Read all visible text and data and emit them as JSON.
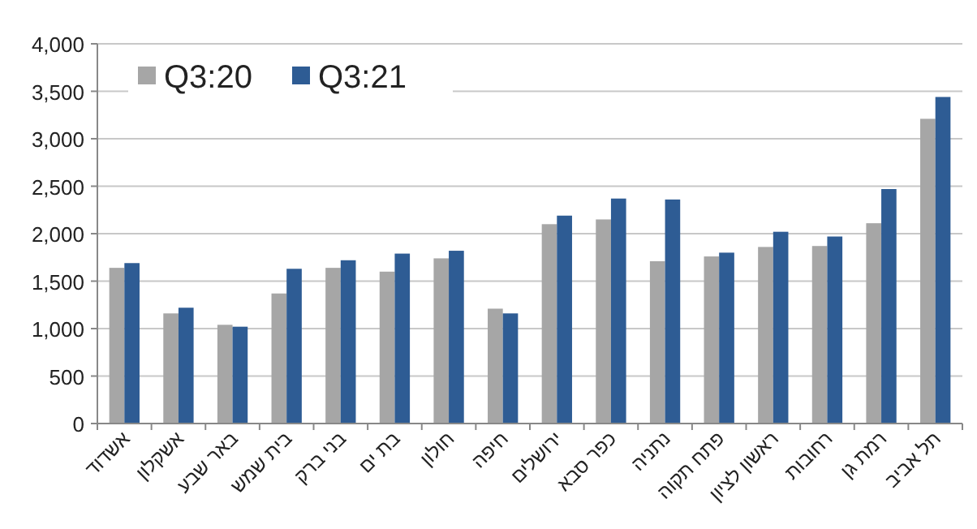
{
  "chart_data": {
    "type": "bar",
    "categories": [
      "אשדוד",
      "אשקלון",
      "באר שבע",
      "בית שמש",
      "בני ברק",
      "בת ים",
      "חולון",
      "חיפה",
      "ירושלים",
      "כפר סבא",
      "נתניה",
      "פתח תקוה",
      "ראשון לציון",
      "רחובות",
      "רמת גן",
      "תל אביב"
    ],
    "series": [
      {
        "name": "Q3:20",
        "color": "#a6a6a6",
        "values": [
          1640,
          1160,
          1040,
          1370,
          1640,
          1600,
          1740,
          1210,
          2100,
          2150,
          1710,
          1760,
          1860,
          1870,
          2110,
          3210
        ]
      },
      {
        "name": "Q3:21",
        "color": "#2e5c94",
        "values": [
          1690,
          1220,
          1020,
          1630,
          1720,
          1790,
          1820,
          1160,
          2190,
          2370,
          2360,
          1800,
          2020,
          1970,
          2470,
          3440
        ]
      }
    ],
    "ylim": [
      0,
      4000
    ],
    "yticks": [
      {
        "value": 0,
        "label": "0"
      },
      {
        "value": 500,
        "label": "500"
      },
      {
        "value": 1000,
        "label": "1,000"
      },
      {
        "value": 1500,
        "label": "1,500"
      },
      {
        "value": 2000,
        "label": "2,000"
      },
      {
        "value": 2500,
        "label": "2,500"
      },
      {
        "value": 3000,
        "label": "3,000"
      },
      {
        "value": 3500,
        "label": "3,500"
      },
      {
        "value": 4000,
        "label": "4,000"
      }
    ],
    "grid": "y",
    "legend": "top left"
  }
}
